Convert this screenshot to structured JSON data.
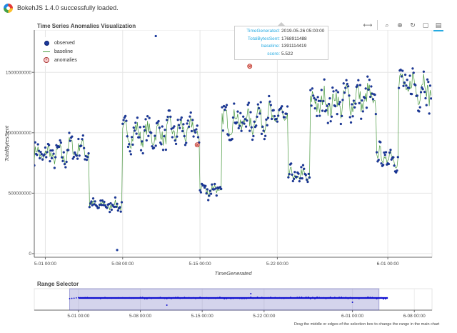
{
  "banner": {
    "text": "BokehJS 1.4.0 successfully loaded."
  },
  "toolbar": [
    {
      "name": "pan-tool-icon",
      "glyph": "⟷",
      "active": true
    },
    {
      "name": "box-zoom-tool-icon",
      "glyph": "⌕",
      "active": false
    },
    {
      "name": "wheel-zoom-tool-icon",
      "glyph": "⊕",
      "active": false
    },
    {
      "name": "reset-tool-icon",
      "glyph": "↻",
      "active": false
    },
    {
      "name": "save-tool-icon",
      "glyph": "▢",
      "active": false
    },
    {
      "name": "hover-tool-icon",
      "glyph": "▤",
      "active": true
    }
  ],
  "tooltip": {
    "rows": [
      {
        "key": "TimeGenerated:",
        "value": "2019-05-26 05:00:00"
      },
      {
        "key": "TotalBytesSent:",
        "value": "1768911488"
      },
      {
        "key": "baseline:",
        "value": "1391114419"
      },
      {
        "key": "score:",
        "value": "5.522"
      }
    ]
  },
  "range_selector": {
    "title": "Range Selector",
    "hint": "Drag the middle or edges of the selection box to change the range in the main chart",
    "x_ticks": [
      "5-01 00:00",
      "5-08 00:00",
      "5-15 00:00",
      "5-22 00:00",
      "6-01 00:00",
      "6-08 00:00"
    ],
    "selection": [
      "2019-04-30",
      "2019-06-04"
    ]
  },
  "chart_data": {
    "type": "scatter",
    "title": "Time Series Anomalies Visualization",
    "xlabel": "TimeGenerated",
    "ylabel": "TotalBytesSent",
    "x_type": "datetime",
    "xlim": [
      "2019-04-30",
      "2019-06-05"
    ],
    "ylim": [
      -30000000,
      1850000000
    ],
    "x_ticks": [
      "5-01 00:00",
      "5-08 00:00",
      "5-15 00:00",
      "5-22 00:00",
      "6-01 00:00"
    ],
    "y_ticks": [
      0,
      500000000,
      1000000000,
      1500000000
    ],
    "y_tick_labels": [
      "0",
      "500000000",
      "1000000000",
      "1500000000"
    ],
    "grid": true,
    "legend_position": "top-left",
    "colors": {
      "observed": "#1a3a9c",
      "baseline": "#4a9a40",
      "anomalies": "#c0392b"
    },
    "series": [
      {
        "name": "observed",
        "segments": [
          {
            "start": "2019-04-30",
            "end": "2019-05-03",
            "level": 820000000
          },
          {
            "start": "2019-05-03",
            "end": "2019-05-05",
            "level": 870000000
          },
          {
            "start": "2019-05-05",
            "end": "2019-05-08",
            "level": 400000000
          },
          {
            "start": "2019-05-08",
            "end": "2019-05-12",
            "level": 990000000
          },
          {
            "start": "2019-05-12",
            "end": "2019-05-15",
            "level": 1020000000
          },
          {
            "start": "2019-05-15",
            "end": "2019-05-17",
            "level": 530000000
          },
          {
            "start": "2019-05-17",
            "end": "2019-05-20",
            "level": 1100000000
          },
          {
            "start": "2019-05-20",
            "end": "2019-05-23",
            "level": 1130000000
          },
          {
            "start": "2019-05-23",
            "end": "2019-05-25",
            "level": 640000000
          },
          {
            "start": "2019-05-25",
            "end": "2019-05-28",
            "level": 1250000000
          },
          {
            "start": "2019-05-28",
            "end": "2019-05-31",
            "level": 1280000000
          },
          {
            "start": "2019-05-31",
            "end": "2019-06-02",
            "level": 800000000
          },
          {
            "start": "2019-06-02",
            "end": "2019-06-05",
            "level": 1380000000
          },
          {
            "start": "2019-06-05",
            "end": "2019-06-08",
            "level": 1400000000
          },
          {
            "start": "2019-06-08",
            "end": "2019-06-10",
            "level": 900000000
          }
        ],
        "outliers": [
          {
            "x": "2019-05-07 12:00",
            "y": 30000000
          },
          {
            "x": "2019-05-11 00:00",
            "y": 1800000000
          }
        ]
      },
      {
        "name": "baseline"
      },
      {
        "name": "anomalies",
        "points": [
          {
            "x": "2019-05-14 18:00",
            "y": 900000000
          },
          {
            "x": "2019-05-19 12:00",
            "y": 1550000000
          },
          {
            "x": "2019-05-26 05:00",
            "y": 1768911488
          }
        ]
      }
    ]
  }
}
